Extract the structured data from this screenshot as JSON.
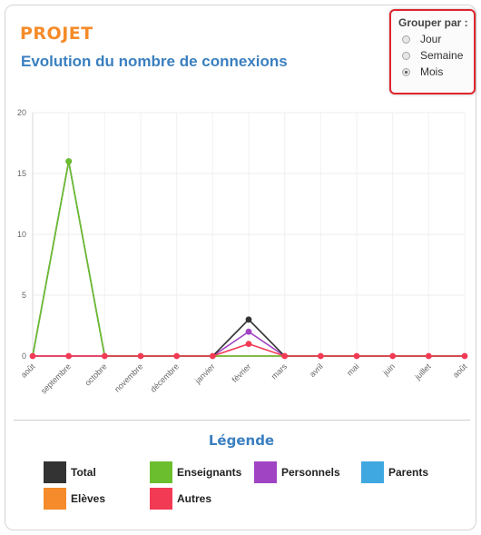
{
  "header": {
    "brand": "PROJET",
    "title": "Evolution du nombre de connexions"
  },
  "group_by": {
    "title": "Grouper par :",
    "options": [
      {
        "label": "Jour",
        "checked": false
      },
      {
        "label": "Semaine",
        "checked": false
      },
      {
        "label": "Mois",
        "checked": true
      }
    ]
  },
  "legend": {
    "title": "Légende",
    "items": [
      {
        "label": "Total",
        "color": "#333333"
      },
      {
        "label": "Enseignants",
        "color": "#6bbf2e"
      },
      {
        "label": "Personnels",
        "color": "#a044c4"
      },
      {
        "label": "Parents",
        "color": "#3fa8e0"
      },
      {
        "label": "Elèves",
        "color": "#f58b2a"
      },
      {
        "label": "Autres",
        "color": "#f23a55"
      }
    ]
  },
  "chart_data": {
    "type": "line",
    "categories": [
      "août",
      "septembre",
      "octobre",
      "novembre",
      "décembre",
      "janvier",
      "février",
      "mars",
      "avril",
      "mai",
      "juin",
      "juillet",
      "août"
    ],
    "ylim": [
      0,
      20
    ],
    "yticks": [
      0,
      5,
      10,
      15,
      20
    ],
    "grid": true,
    "series": [
      {
        "name": "Total",
        "color": "#333333",
        "values": [
          0,
          16,
          0,
          0,
          0,
          0,
          3,
          0,
          0,
          0,
          0,
          0,
          0
        ]
      },
      {
        "name": "Enseignants",
        "color": "#6bbf2e",
        "values": [
          0,
          16,
          0,
          0,
          0,
          0,
          0,
          0,
          0,
          0,
          0,
          0,
          0
        ]
      },
      {
        "name": "Personnels",
        "color": "#a044c4",
        "values": [
          0,
          0,
          0,
          0,
          0,
          0,
          2,
          0,
          0,
          0,
          0,
          0,
          0
        ]
      },
      {
        "name": "Parents",
        "color": "#3fa8e0",
        "values": [
          0,
          0,
          0,
          0,
          0,
          0,
          0,
          0,
          0,
          0,
          0,
          0,
          0
        ]
      },
      {
        "name": "Elèves",
        "color": "#f58b2a",
        "values": [
          0,
          0,
          0,
          0,
          0,
          0,
          0,
          0,
          0,
          0,
          0,
          0,
          0
        ]
      },
      {
        "name": "Autres",
        "color": "#f23a55",
        "values": [
          0,
          0,
          0,
          0,
          0,
          0,
          1,
          0,
          0,
          0,
          0,
          0,
          0
        ]
      }
    ]
  }
}
